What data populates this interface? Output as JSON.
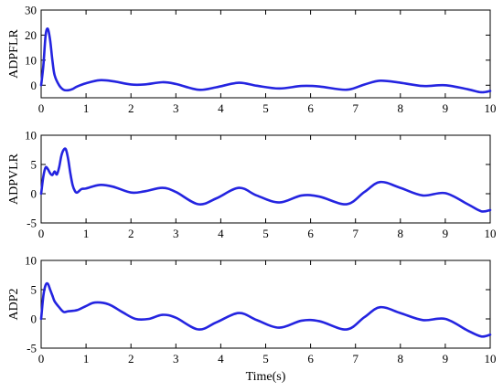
{
  "colors": {
    "series": "#2424e0",
    "axis": "#000000",
    "background": "#ffffff"
  },
  "chart_data": [
    {
      "type": "line",
      "ylabel": "ADPFLR",
      "xlabel": "",
      "xlim": [
        0,
        10
      ],
      "ylim": [
        -5,
        30
      ],
      "xticks": [
        0,
        1,
        2,
        3,
        4,
        5,
        6,
        7,
        8,
        9,
        10
      ],
      "yticks": [
        0,
        10,
        20,
        30
      ],
      "series": [
        {
          "x": [
            0,
            0.05,
            0.1,
            0.15,
            0.2,
            0.25,
            0.3,
            0.4,
            0.5,
            0.6,
            0.7,
            0.8,
            1.0,
            1.3,
            1.6,
            2.0,
            2.3,
            2.7,
            3.0,
            3.5,
            3.9,
            4.4,
            4.8,
            5.3,
            5.8,
            6.2,
            6.8,
            7.2,
            7.55,
            8.0,
            8.5,
            9.0,
            9.5,
            9.8,
            10.0
          ],
          "values": [
            0,
            8,
            20,
            22.5,
            18,
            10,
            4,
            0,
            -1.8,
            -2,
            -1.5,
            -0.5,
            0.8,
            2,
            1.6,
            0.3,
            0.3,
            1.2,
            0.5,
            -1.8,
            -0.8,
            1,
            -0.2,
            -1.3,
            -0.3,
            -0.5,
            -1.8,
            0.3,
            1.8,
            1,
            -0.3,
            0,
            -1.6,
            -2.8,
            -2.3
          ]
        }
      ]
    },
    {
      "type": "line",
      "ylabel": "ADPVLR",
      "xlabel": "",
      "xlim": [
        0,
        10
      ],
      "ylim": [
        -5,
        10
      ],
      "xticks": [
        0,
        1,
        2,
        3,
        4,
        5,
        6,
        7,
        8,
        9,
        10
      ],
      "yticks": [
        -5,
        0,
        5,
        10
      ],
      "series": [
        {
          "x": [
            0,
            0.05,
            0.1,
            0.15,
            0.2,
            0.25,
            0.3,
            0.35,
            0.4,
            0.45,
            0.5,
            0.55,
            0.6,
            0.65,
            0.7,
            0.75,
            0.8,
            0.9,
            1.0,
            1.3,
            1.6,
            2.0,
            2.3,
            2.7,
            3.0,
            3.5,
            3.9,
            4.4,
            4.8,
            5.3,
            5.8,
            6.2,
            6.8,
            7.2,
            7.55,
            8.0,
            8.5,
            9.0,
            9.5,
            9.8,
            10.0
          ],
          "values": [
            0,
            3,
            4.5,
            4.2,
            3.5,
            3.2,
            3.8,
            3.3,
            4.5,
            6.5,
            7.5,
            7.6,
            6.0,
            3.5,
            1.5,
            0.5,
            0.2,
            0.8,
            0.9,
            1.5,
            1.2,
            0.2,
            0.4,
            1.0,
            0.3,
            -1.8,
            -0.8,
            1.0,
            -0.3,
            -1.5,
            -0.3,
            -0.5,
            -1.8,
            0.3,
            2,
            1,
            -0.3,
            0.1,
            -1.8,
            -3.0,
            -2.8
          ]
        }
      ]
    },
    {
      "type": "line",
      "ylabel": "ADP2",
      "xlabel": "Time(s)",
      "xlim": [
        0,
        10
      ],
      "ylim": [
        -5,
        10
      ],
      "xticks": [
        0,
        1,
        2,
        3,
        4,
        5,
        6,
        7,
        8,
        9,
        10
      ],
      "yticks": [
        -5,
        0,
        5,
        10
      ],
      "series": [
        {
          "x": [
            0,
            0.05,
            0.1,
            0.15,
            0.2,
            0.25,
            0.3,
            0.4,
            0.5,
            0.6,
            0.8,
            1.0,
            1.2,
            1.5,
            1.8,
            2.1,
            2.4,
            2.7,
            3.0,
            3.5,
            3.9,
            4.4,
            4.8,
            5.3,
            5.8,
            6.2,
            6.8,
            7.2,
            7.55,
            8.0,
            8.5,
            9.0,
            9.5,
            9.8,
            10.0
          ],
          "values": [
            0,
            4,
            5.8,
            6,
            5,
            4,
            3,
            2,
            1.2,
            1.3,
            1.5,
            2.2,
            2.8,
            2.5,
            1.2,
            0,
            0,
            0.7,
            0.2,
            -1.8,
            -0.6,
            1,
            -0.2,
            -1.5,
            -0.3,
            -0.4,
            -1.8,
            0.3,
            2,
            1,
            -0.2,
            0,
            -2,
            -3,
            -2.7
          ]
        }
      ]
    }
  ]
}
